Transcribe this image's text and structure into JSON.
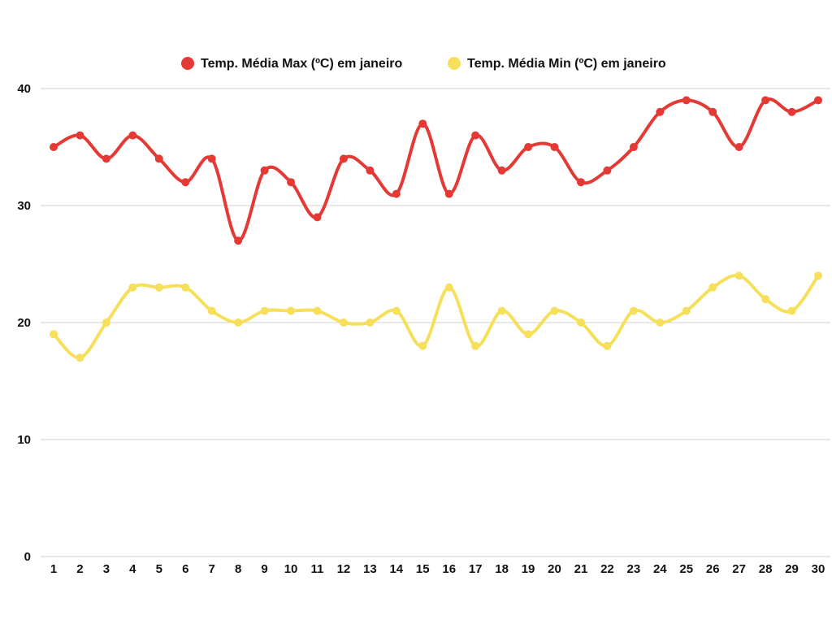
{
  "chart_data": {
    "type": "line",
    "title": "",
    "xlabel": "",
    "ylabel": "",
    "categories": [
      "1",
      "2",
      "3",
      "4",
      "5",
      "6",
      "7",
      "8",
      "9",
      "10",
      "11",
      "12",
      "13",
      "14",
      "15",
      "16",
      "17",
      "18",
      "19",
      "20",
      "21",
      "22",
      "23",
      "24",
      "25",
      "26",
      "27",
      "28",
      "29",
      "30"
    ],
    "ylim": [
      0,
      40
    ],
    "yticks": [
      0,
      10,
      20,
      30,
      40
    ],
    "grid": true,
    "legend_position": "top",
    "series": [
      {
        "name": "Temp. Média Max (ºC) em janeiro",
        "color": "#e53935",
        "values": [
          35,
          36,
          34,
          36,
          34,
          32,
          34,
          27,
          33,
          32,
          29,
          34,
          33,
          31,
          37,
          31,
          36,
          33,
          35,
          35,
          32,
          33,
          35,
          38,
          39,
          38,
          35,
          39,
          38,
          39
        ]
      },
      {
        "name": "Temp. Média Min (ºC) em janeiro",
        "color": "#f5df5b",
        "values": [
          19,
          17,
          20,
          23,
          23,
          23,
          21,
          20,
          21,
          21,
          21,
          20,
          20,
          21,
          18,
          23,
          18,
          21,
          19,
          21,
          20,
          18,
          21,
          20,
          21,
          23,
          24,
          22,
          21,
          24
        ]
      }
    ]
  }
}
